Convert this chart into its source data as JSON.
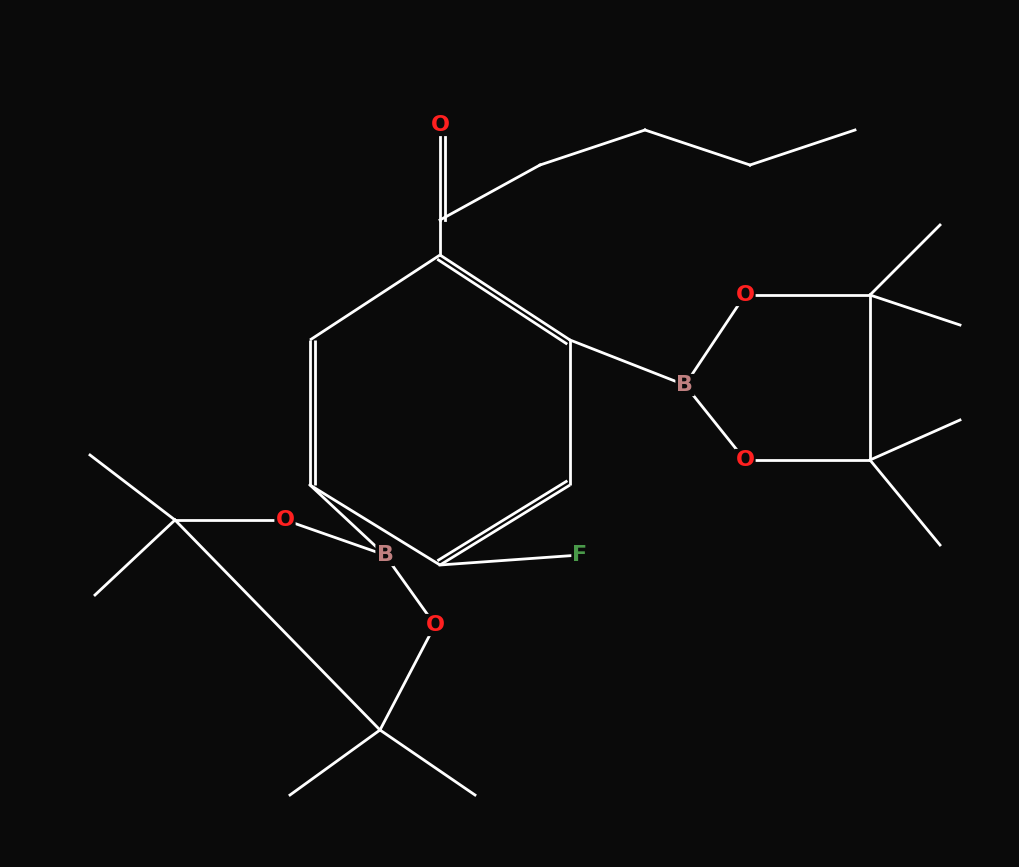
{
  "bg_color": "#0a0a0a",
  "bond_color": "#ffffff",
  "bond_width": 2.0,
  "atom_colors": {
    "O": "#ff2020",
    "B": "#c08080",
    "F": "#4a9a4a",
    "C": "#ffffff"
  },
  "font_size_atom": 16,
  "title": "",
  "figsize": [
    10.2,
    8.67
  ],
  "dpi": 100
}
